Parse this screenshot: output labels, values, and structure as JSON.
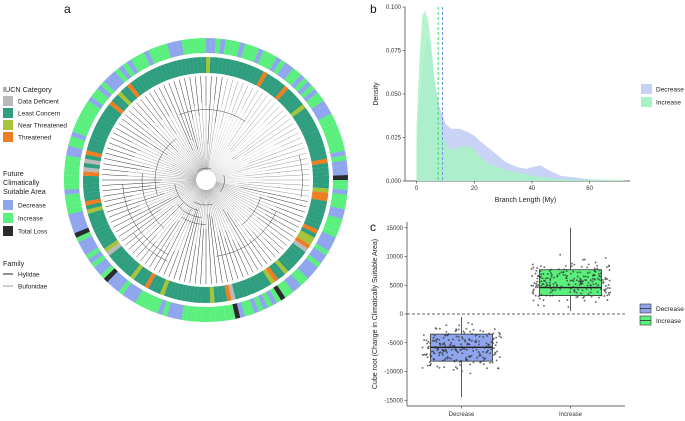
{
  "panels": {
    "a": "a",
    "b": "b",
    "c": "c"
  },
  "legend_a": {
    "iucn_title": "IUCN Category",
    "iucn": [
      {
        "label": "Data Deficient",
        "color": "#b9b9b9"
      },
      {
        "label": "Least Concern",
        "color": "#2e9e7e"
      },
      {
        "label": "Near Threatened",
        "color": "#a6c43a"
      },
      {
        "label": "Threatened",
        "color": "#f07d22"
      }
    ],
    "future_title_1": "Future",
    "future_title_2": "Climatically",
    "future_title_3": "Suitable Area",
    "future": [
      {
        "label": "Decrease",
        "color": "#8fa6ee"
      },
      {
        "label": "Increase",
        "color": "#5bf07e"
      },
      {
        "label": "Total Loss",
        "color": "#2b2b2b"
      }
    ],
    "family_title": "Family",
    "family": [
      {
        "label": "Hylidae",
        "color": "#222222"
      },
      {
        "label": "Bufonidae",
        "color": "#9a9a9a"
      }
    ]
  },
  "chart_data": [
    {
      "id": "b",
      "type": "area",
      "title": "",
      "xlabel": "Branch Length (My)",
      "ylabel": "Density",
      "xlim": [
        -4,
        74
      ],
      "ylim": [
        0,
        0.1
      ],
      "xticks": [
        0,
        20,
        40,
        60
      ],
      "yticks": [
        "0.000",
        "0.025",
        "0.050",
        "0.075",
        "0.100"
      ],
      "series": [
        {
          "name": "Decrease",
          "color": "#c5d1f5",
          "mean": 9,
          "x": [
            0,
            1,
            2,
            3,
            4,
            5,
            6,
            8,
            10,
            12,
            15,
            18,
            20,
            22,
            25,
            28,
            30,
            32,
            35,
            38,
            40,
            43,
            46,
            50,
            55,
            60,
            65,
            70
          ],
          "values": [
            0.02,
            0.045,
            0.065,
            0.078,
            0.082,
            0.075,
            0.06,
            0.042,
            0.033,
            0.03,
            0.03,
            0.028,
            0.026,
            0.023,
            0.019,
            0.015,
            0.012,
            0.01,
            0.008,
            0.007,
            0.008,
            0.009,
            0.006,
            0.003,
            0.002,
            0.001,
            0.0005,
            0.0002
          ]
        },
        {
          "name": "Increase",
          "color": "#a8f2c4",
          "mean": 7.5,
          "x": [
            0,
            1,
            2,
            3,
            4,
            5,
            6,
            8,
            10,
            12,
            14,
            16,
            18,
            20,
            22,
            25,
            28,
            30,
            32,
            35,
            38,
            40,
            45,
            50,
            55,
            60,
            65,
            70,
            72
          ],
          "values": [
            0.03,
            0.07,
            0.095,
            0.098,
            0.092,
            0.08,
            0.062,
            0.035,
            0.022,
            0.018,
            0.019,
            0.02,
            0.02,
            0.018,
            0.014,
            0.01,
            0.008,
            0.007,
            0.006,
            0.005,
            0.004,
            0.003,
            0.002,
            0.001,
            0.0008,
            0.0006,
            0.0008,
            0.0006,
            0.0003
          ]
        }
      ],
      "legend": [
        "Decrease",
        "Increase"
      ]
    },
    {
      "id": "c",
      "type": "box",
      "title": "",
      "xlabel": "",
      "ylabel": "Cube root (Change in Climatically Suitable Area)",
      "categories": [
        "Decrease",
        "Increase"
      ],
      "ylim": [
        -16000,
        16000
      ],
      "yticks": [
        -15000,
        -10000,
        -5000,
        0,
        5000,
        10000,
        15000
      ],
      "series": [
        {
          "name": "Decrease",
          "color": "#8fa6ee",
          "min": -14500,
          "q1": -8200,
          "median": -5800,
          "q3": -3500,
          "max": -500
        },
        {
          "name": "Increase",
          "color": "#5bf07e",
          "min": 500,
          "q1": 3200,
          "median": 4600,
          "q3": 7700,
          "max": 15000
        }
      ],
      "hline": 0,
      "legend": [
        "Decrease",
        "Increase"
      ]
    }
  ]
}
